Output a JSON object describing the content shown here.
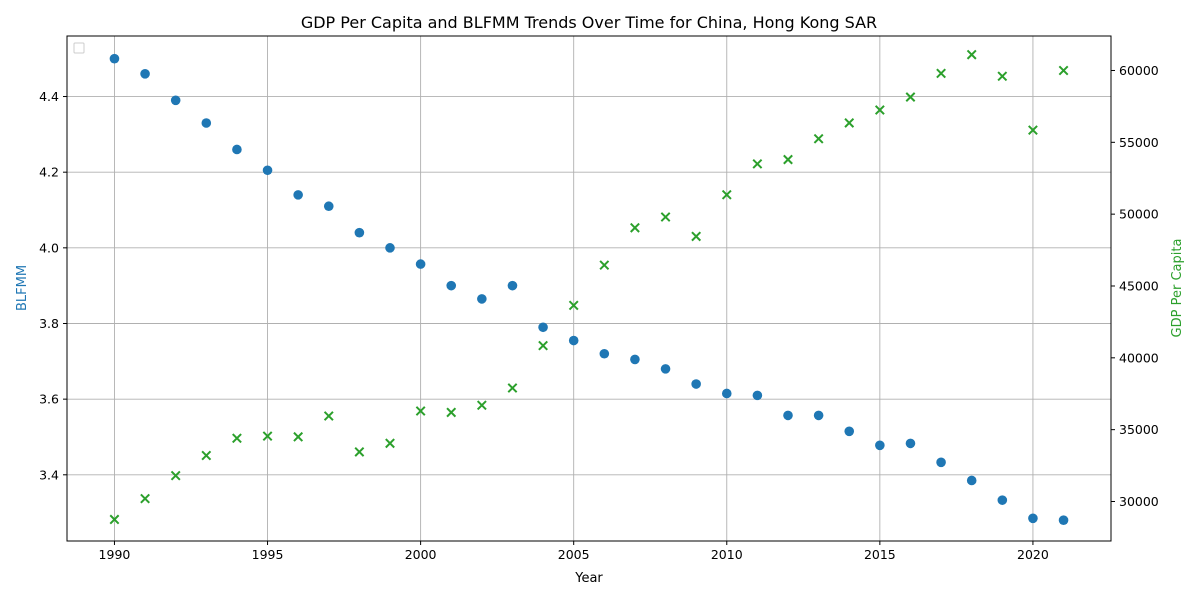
{
  "chart_data": {
    "type": "scatter",
    "title": "GDP Per Capita and BLFMM Trends Over Time for China, Hong Kong SAR",
    "xlabel": "Year",
    "ylabel_left": "BLFMM",
    "ylabel_right": "GDP Per Capita",
    "xlim": [
      1988.45,
      2022.55
    ],
    "ylim_left": [
      3.225,
      4.56
    ],
    "ylim_right": [
      27250,
      62400
    ],
    "x_ticks": [
      1990,
      1995,
      2000,
      2005,
      2010,
      2015,
      2020
    ],
    "y_left_ticks": [
      3.4,
      3.6,
      3.8,
      4.0,
      4.2,
      4.4
    ],
    "y_right_ticks": [
      30000,
      35000,
      40000,
      45000,
      50000,
      55000,
      60000
    ],
    "grid": true,
    "legend": "top-left (empty)",
    "colors": {
      "blfmm": "#1f77b4",
      "gdp": "#2ca02c",
      "grid": "#b0b0b0"
    },
    "series": [
      {
        "name": "BLFMM",
        "axis": "left",
        "marker": "circle",
        "x": [
          1990,
          1991,
          1992,
          1993,
          1994,
          1995,
          1996,
          1997,
          1998,
          1999,
          2000,
          2001,
          2002,
          2003,
          2004,
          2005,
          2006,
          2007,
          2008,
          2009,
          2010,
          2011,
          2012,
          2013,
          2014,
          2015,
          2016,
          2017,
          2018,
          2019,
          2020,
          2021
        ],
        "y": [
          4.5,
          4.46,
          4.39,
          4.33,
          4.26,
          4.205,
          4.14,
          4.11,
          4.04,
          4.0,
          3.957,
          3.9,
          3.865,
          3.9,
          3.79,
          3.755,
          3.72,
          3.705,
          3.68,
          3.64,
          3.615,
          3.61,
          3.557,
          3.557,
          3.515,
          3.478,
          3.483,
          3.433,
          3.385,
          3.333,
          3.285,
          3.28
        ]
      },
      {
        "name": "GDP Per Capita",
        "axis": "right",
        "marker": "x",
        "x": [
          1990,
          1991,
          1992,
          1993,
          1994,
          1995,
          1996,
          1997,
          1998,
          1999,
          2000,
          2001,
          2002,
          2003,
          2004,
          2005,
          2006,
          2007,
          2008,
          2009,
          2010,
          2011,
          2012,
          2013,
          2014,
          2015,
          2016,
          2017,
          2018,
          2019,
          2020,
          2021
        ],
        "y": [
          28750,
          30200,
          31800,
          33200,
          34400,
          34550,
          34500,
          35950,
          33450,
          34050,
          36300,
          36200,
          36700,
          37900,
          40850,
          43650,
          46450,
          49050,
          49800,
          48450,
          51350,
          53500,
          53800,
          55250,
          56350,
          57250,
          58150,
          59800,
          61100,
          59600,
          55850,
          60000
        ]
      }
    ]
  }
}
